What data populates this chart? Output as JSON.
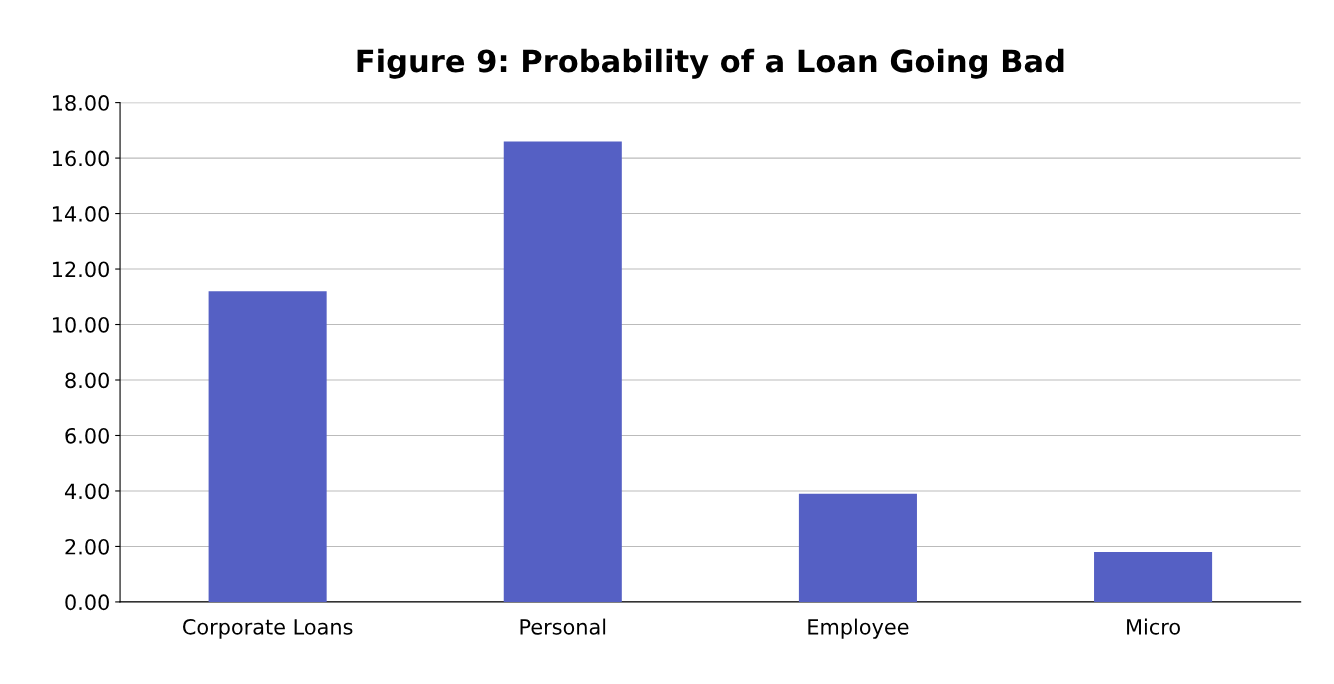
{
  "chart_data": {
    "type": "bar",
    "title": "Figure 9: Probability of a Loan Going Bad",
    "categories": [
      "Corporate Loans",
      "Personal",
      "Employee",
      "Micro"
    ],
    "values": [
      11.2,
      16.6,
      3.9,
      1.8
    ],
    "color": "#5560c4",
    "ylim": [
      0,
      18
    ],
    "yticks": [
      {
        "value": 0,
        "label": "0.00"
      },
      {
        "value": 2,
        "label": "2.00"
      },
      {
        "value": 4,
        "label": "4.00"
      },
      {
        "value": 6,
        "label": "6.00"
      },
      {
        "value": 8,
        "label": "8.00"
      },
      {
        "value": 10,
        "label": "10.00"
      },
      {
        "value": 12,
        "label": "12.00"
      },
      {
        "value": 14,
        "label": "14.00"
      },
      {
        "value": 16,
        "label": "16.00"
      },
      {
        "value": 18,
        "label": "18.00"
      }
    ],
    "grid": "y"
  }
}
